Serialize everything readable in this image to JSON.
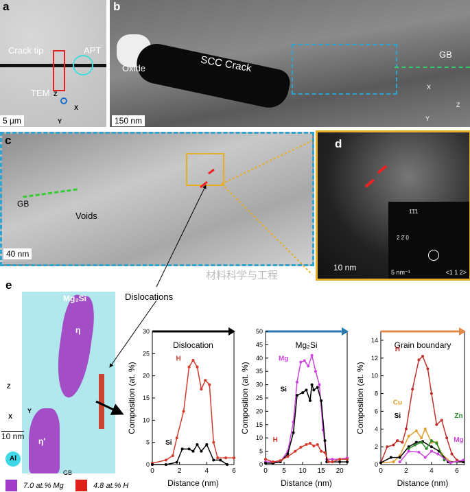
{
  "panels": {
    "a": {
      "label": "a",
      "crack_tip": "Crack tip",
      "apt": "APT",
      "tem": "TEM",
      "scale": "5 µm",
      "axes": [
        "Z",
        "X",
        "Y"
      ]
    },
    "b": {
      "label": "b",
      "oxide": "Oxide",
      "crack": "SCC Crack",
      "gb": "GB",
      "scale": "150 nm",
      "axes": [
        "X",
        "Z",
        "Y"
      ]
    },
    "c": {
      "label": "c",
      "gb": "GB",
      "voids": "Voids",
      "scale": "40 nm"
    },
    "d": {
      "label": "d",
      "scale": "10 nm",
      "inset_scale": "5 nm⁻¹",
      "zone_axis": "<1 1 2>",
      "spot1": "1̄1̄1",
      "spot2": "2 2̄ 0"
    },
    "e": {
      "label": "e",
      "mg2si": "Mg₂Si",
      "eta": "η",
      "eta_prime": "η'",
      "gb": "GB",
      "al": "Al",
      "scale": "10 nm",
      "dislocations": "Dislocations",
      "axes": [
        "Z",
        "X",
        "Y"
      ],
      "legend": [
        {
          "label": "7.0 at.% Mg",
          "color": "#a03cc8"
        },
        {
          "label": "4.8 at.% H",
          "color": "#e0201a"
        }
      ]
    }
  },
  "watermark": "材料科学与工程",
  "chart_data": [
    {
      "type": "line",
      "title": "Dislocation",
      "xlabel": "Distance (nm)",
      "ylabel": "Composition (at. %)",
      "xlim": [
        0,
        6
      ],
      "ylim": [
        0,
        30
      ],
      "xticks": [
        0,
        2,
        4,
        6
      ],
      "yticks": [
        0,
        5,
        10,
        15,
        20,
        25,
        30
      ],
      "arrow_color": "#000000",
      "series": [
        {
          "name": "H",
          "color": "#d23a2a",
          "x": [
            0,
            1,
            1.5,
            1.8,
            2.3,
            2.7,
            3,
            3.3,
            3.6,
            3.9,
            4.2,
            4.5,
            4.8,
            5.4,
            6
          ],
          "y": [
            0.3,
            1,
            2,
            6,
            12,
            22,
            23.5,
            22,
            17,
            19,
            18,
            5,
            1.5,
            1.5,
            1.5
          ]
        },
        {
          "name": "Si",
          "color": "#000000",
          "x": [
            0,
            1,
            1.8,
            2.2,
            2.7,
            3,
            3.3,
            3.6,
            4,
            4.5,
            5,
            5.5
          ],
          "y": [
            0,
            0,
            0.5,
            3.5,
            3.5,
            3,
            4.5,
            3,
            4.5,
            1,
            1,
            0
          ]
        }
      ]
    },
    {
      "type": "line",
      "title": "Mg₂Si",
      "xlabel": "Distance (nm)",
      "ylabel": "Composition (at. %)",
      "xlim": [
        0,
        22
      ],
      "ylim": [
        0,
        50
      ],
      "xticks": [
        0,
        5,
        10,
        15,
        20
      ],
      "yticks": [
        0,
        5,
        10,
        15,
        20,
        25,
        30,
        35,
        40,
        45,
        50
      ],
      "arrow_color": "#2a7ab0",
      "series": [
        {
          "name": "Mg",
          "color": "#cc44dd",
          "x": [
            0,
            2,
            4,
            6,
            7.5,
            8.5,
            9.5,
            10.5,
            11.5,
            12.5,
            13.5,
            14.5,
            15.5,
            16.5,
            18,
            20,
            22
          ],
          "y": [
            1,
            1,
            1,
            5,
            16,
            31,
            38.5,
            39,
            37,
            41,
            35,
            30,
            13,
            2,
            2,
            2,
            2.5
          ]
        },
        {
          "name": "Si",
          "color": "#000000",
          "x": [
            0,
            2,
            4,
            6,
            7.5,
            8.5,
            10,
            11,
            12,
            12.5,
            13,
            14,
            15,
            16,
            16.5,
            18,
            20,
            22
          ],
          "y": [
            0.5,
            0.5,
            1,
            4,
            12,
            26,
            27,
            28,
            24,
            30,
            28,
            29,
            24,
            9,
            1,
            1,
            1,
            1
          ]
        },
        {
          "name": "H",
          "color": "#d23a2a",
          "x": [
            0,
            2,
            4,
            6,
            8,
            9.5,
            11,
            12,
            13,
            14,
            15,
            16,
            17,
            18,
            20,
            22
          ],
          "y": [
            2,
            1,
            1.5,
            3,
            5,
            6.5,
            7.5,
            8,
            7,
            7.5,
            5,
            4.5,
            1,
            1,
            2,
            2
          ]
        }
      ]
    },
    {
      "type": "line",
      "title": "Grain boundary",
      "xlabel": "Distance (nm)",
      "ylabel": "Composition (at. %)",
      "xlim": [
        0,
        6.6
      ],
      "ylim": [
        0,
        15
      ],
      "xticks": [
        0,
        2,
        4,
        6
      ],
      "yticks": [
        0,
        2,
        4,
        6,
        8,
        10,
        12,
        14
      ],
      "arrow_color": "#e08a4a",
      "series": [
        {
          "name": "H",
          "color": "#c0302a",
          "x": [
            0,
            0.5,
            1,
            1.3,
            1.7,
            2,
            2.5,
            3,
            3.3,
            3.7,
            4,
            4.4,
            4.8,
            5.2,
            5.6,
            6,
            6.5
          ],
          "y": [
            0.2,
            2,
            2.2,
            2.7,
            2.5,
            4,
            8.5,
            11.8,
            12.2,
            10.8,
            8,
            4.5,
            5,
            3,
            1.2,
            0.5,
            0.3
          ]
        },
        {
          "name": "Cu",
          "color": "#e0a030",
          "x": [
            0,
            1,
            1.5,
            2.2,
            2.8,
            3.2,
            3.5,
            4,
            4.4,
            4.8,
            5.5,
            6.5
          ],
          "y": [
            0.2,
            0.3,
            1,
            3.2,
            3.8,
            3,
            4,
            2.5,
            2.5,
            1.2,
            0.3,
            0.3
          ]
        },
        {
          "name": "Si",
          "color": "#000000",
          "x": [
            0,
            0.8,
            1.5,
            2.2,
            2.8,
            3.3,
            4,
            4.6,
            5.3,
            6.5
          ],
          "y": [
            0.2,
            0.8,
            0.8,
            2,
            2.5,
            2.6,
            2,
            1.5,
            0.3,
            0.3
          ]
        },
        {
          "name": "Zn",
          "color": "#2a8a2a",
          "x": [
            2.2,
            2.7,
            3.2,
            3.6,
            4,
            4.4,
            5
          ],
          "y": [
            1.8,
            2.2,
            2.5,
            1.8,
            2.7,
            2.4,
            0.5
          ]
        },
        {
          "name": "Mg",
          "color": "#cc44dd",
          "x": [
            1.5,
            2.2,
            3,
            3.5,
            4,
            4.5,
            5.5,
            6.5
          ],
          "y": [
            0.3,
            1.5,
            1.4,
            0.8,
            1.5,
            1.2,
            0.2,
            0.5
          ]
        }
      ]
    }
  ]
}
